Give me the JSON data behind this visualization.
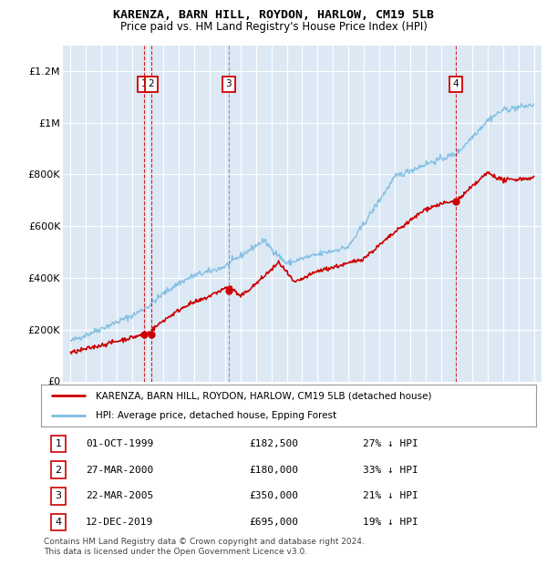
{
  "title": "KARENZA, BARN HILL, ROYDON, HARLOW, CM19 5LB",
  "subtitle": "Price paid vs. HM Land Registry's House Price Index (HPI)",
  "plot_bg_color": "#dce9f5",
  "ylim": [
    0,
    1300000
  ],
  "yticks": [
    0,
    200000,
    400000,
    600000,
    800000,
    1000000,
    1200000
  ],
  "ytick_labels": [
    "£0",
    "£200K",
    "£400K",
    "£600K",
    "£800K",
    "£1M",
    "£1.2M"
  ],
  "hpi_color": "#7bbcdf",
  "price_color": "#cc0000",
  "legend_label_price": "KARENZA, BARN HILL, ROYDON, HARLOW, CM19 5LB (detached house)",
  "legend_label_hpi": "HPI: Average price, detached house, Epping Forest",
  "transactions": [
    {
      "id": 1,
      "date": "01-OCT-1999",
      "price": 182500,
      "pct": "27% ↓ HPI",
      "x_year": 1999.75,
      "vline_color": "#cc0000",
      "vline_style": "--"
    },
    {
      "id": 2,
      "date": "27-MAR-2000",
      "price": 180000,
      "pct": "33% ↓ HPI",
      "x_year": 2000.23,
      "vline_color": "#cc0000",
      "vline_style": "--"
    },
    {
      "id": 3,
      "date": "22-MAR-2005",
      "price": 350000,
      "pct": "21% ↓ HPI",
      "x_year": 2005.23,
      "vline_color": "#888888",
      "vline_style": "--"
    },
    {
      "id": 4,
      "date": "12-DEC-2019",
      "price": 695000,
      "pct": "19% ↓ HPI",
      "x_year": 2019.95,
      "vline_color": "#cc0000",
      "vline_style": "--"
    }
  ],
  "footer_line1": "Contains HM Land Registry data © Crown copyright and database right 2024.",
  "footer_line2": "This data is licensed under the Open Government Licence v3.0.",
  "xlim_start": 1994.5,
  "xlim_end": 2025.5
}
